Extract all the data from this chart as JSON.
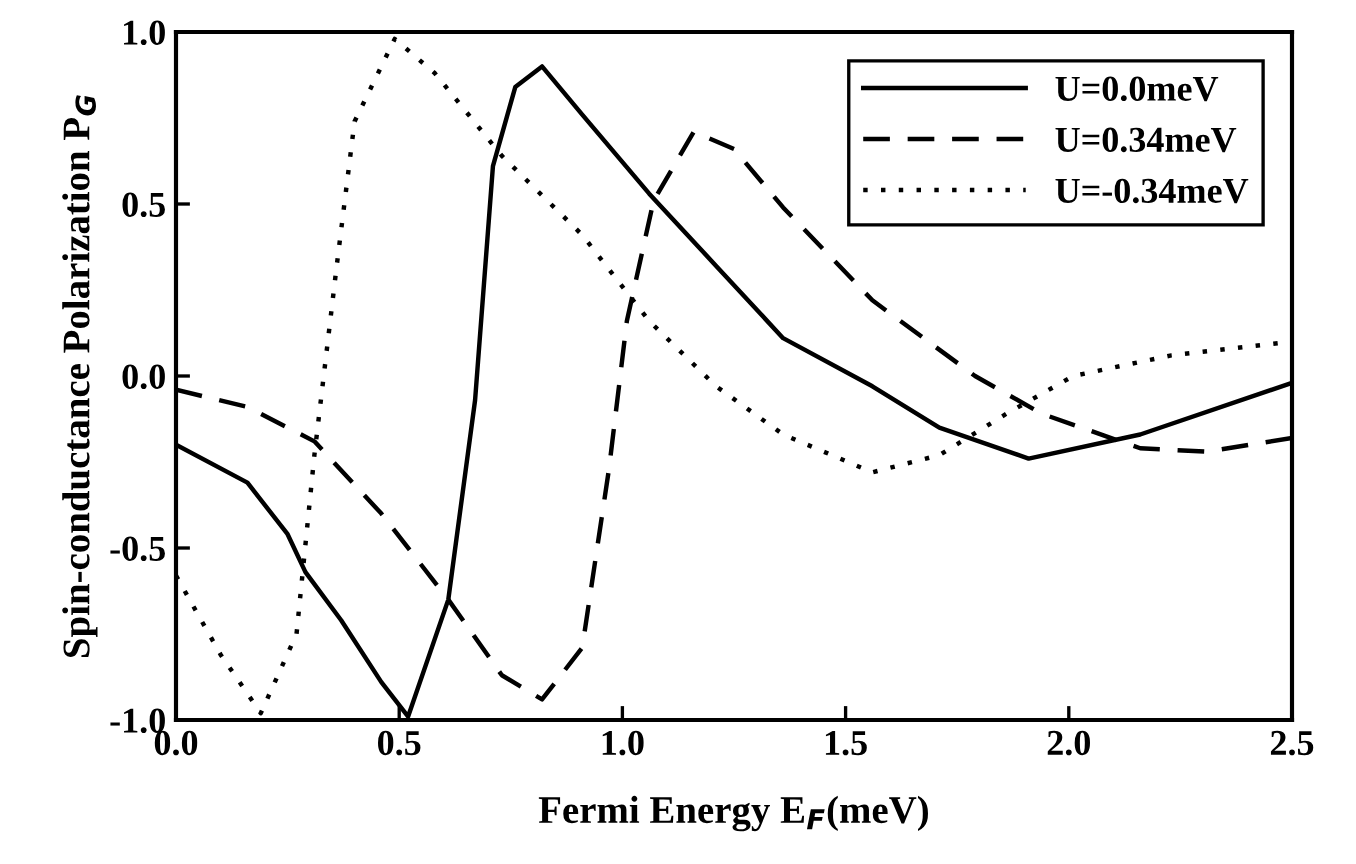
{
  "chart_data": {
    "type": "line",
    "xlabel": "Fermi Energy E$_{F}$(meV)",
    "ylabel": "Spin-conductance Polarization P$_{G}$",
    "xlim": [
      0.0,
      2.5
    ],
    "ylim": [
      -1.0,
      1.0
    ],
    "xticks": [
      {
        "value": 0,
        "label": "0.0"
      },
      {
        "value": 0.5,
        "label": "0.5"
      },
      {
        "value": 1,
        "label": "1.0"
      },
      {
        "value": 1.5,
        "label": "1.5"
      },
      {
        "value": 2,
        "label": "2.0"
      },
      {
        "value": 2.5,
        "label": "2.5"
      }
    ],
    "yticks": [
      {
        "value": -1,
        "label": "-1.0"
      },
      {
        "value": -0.5,
        "label": "-0.5"
      },
      {
        "value": 0,
        "label": "0.0"
      },
      {
        "value": 0.5,
        "label": "0.5"
      },
      {
        "value": 1,
        "label": "1.0"
      }
    ],
    "grid": false,
    "legend": "top right",
    "marker": "none",
    "series": [
      {
        "name": "U=0.0meV",
        "color": "#000000",
        "line_style": "solid",
        "x": [
          0.0,
          0.16,
          0.25,
          0.29,
          0.37,
          0.46,
          0.52,
          0.61,
          0.67,
          0.71,
          0.76,
          0.82,
          0.91,
          1.06,
          1.21,
          1.36,
          1.56,
          1.71,
          1.91,
          2.16,
          2.5
        ],
        "values": [
          -0.2,
          -0.31,
          -0.46,
          -0.57,
          -0.71,
          -0.89,
          -0.99,
          -0.65,
          -0.07,
          0.61,
          0.84,
          0.9,
          0.76,
          0.53,
          0.32,
          0.11,
          -0.03,
          -0.15,
          -0.24,
          -0.17,
          -0.02
        ]
      },
      {
        "name": "U=0.34meV",
        "color": "#000000",
        "line_style": "dashed",
        "x": [
          0.0,
          0.16,
          0.31,
          0.46,
          0.61,
          0.73,
          0.82,
          0.91,
          0.97,
          1.01,
          1.07,
          1.16,
          1.25,
          1.36,
          1.56,
          1.79,
          1.94,
          2.16,
          2.31,
          2.5
        ],
        "values": [
          -0.04,
          -0.09,
          -0.19,
          -0.4,
          -0.65,
          -0.87,
          -0.94,
          -0.79,
          -0.27,
          0.16,
          0.51,
          0.71,
          0.66,
          0.49,
          0.22,
          0.0,
          -0.11,
          -0.21,
          -0.22,
          -0.18
        ]
      },
      {
        "name": "U=-0.34meV",
        "color": "#000000",
        "line_style": "dotted",
        "x": [
          0.0,
          0.1,
          0.19,
          0.27,
          0.31,
          0.36,
          0.4,
          0.49,
          0.58,
          0.73,
          0.91,
          1.06,
          1.21,
          1.36,
          1.56,
          1.71,
          1.86,
          2.01,
          2.23,
          2.5
        ],
        "values": [
          -0.58,
          -0.81,
          -0.98,
          -0.75,
          -0.23,
          0.32,
          0.74,
          0.98,
          0.88,
          0.64,
          0.41,
          0.16,
          -0.03,
          -0.17,
          -0.28,
          -0.23,
          -0.11,
          0.0,
          0.06,
          0.1
        ]
      }
    ]
  }
}
